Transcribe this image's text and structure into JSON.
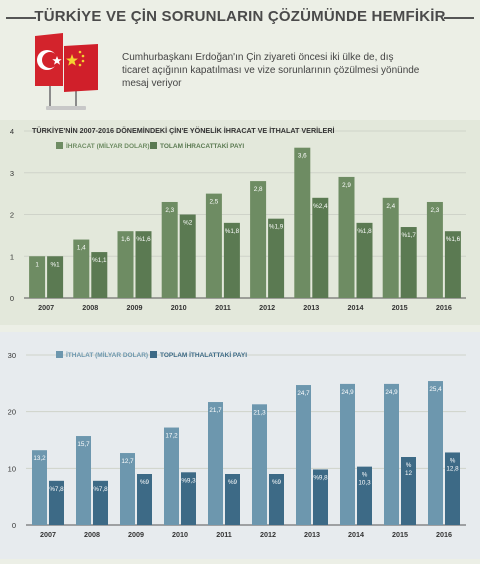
{
  "header": {
    "title": "TÜRKİYE VE ÇİN SORUNLARIN ÇÖZÜMÜNDE HEMFİKİR",
    "intro_lines": [
      "Cumhurbaşkanı Erdoğan'ın Çin ziyareti öncesi iki ülke de, dış",
      "ticaret açığının kapatılması ve vize sorunlarının çözülmesi yönünde",
      "mesaj veriyor"
    ]
  },
  "colors": {
    "export_bar": "#6e8c63",
    "export_share": "#5b7a52",
    "import_bar": "#6d97ae",
    "import_share": "#3d6a86",
    "red": "#d3232c",
    "china_red": "#d01f2a",
    "china_star": "#f5d232"
  },
  "chart_data": [
    {
      "type": "bar",
      "title": "TÜRKİYE'NİN 2007-2016 DÖNEMİNDEKİ ÇİN'E YÖNELİK İHRACAT VE İTHALAT VERİLERİ",
      "categories": [
        "2007",
        "2008",
        "2009",
        "2010",
        "2011",
        "2012",
        "2013",
        "2014",
        "2015",
        "2016"
      ],
      "ylim": [
        0,
        4
      ],
      "yticks": [
        "0",
        "1",
        "2",
        "3",
        "4"
      ],
      "series": [
        {
          "name": "İHRACAT (MİLYAR DOLAR)",
          "values": [
            1,
            1.4,
            1.6,
            2.3,
            2.5,
            2.8,
            3.6,
            2.9,
            2.4,
            2.3
          ],
          "labels": [
            "1",
            "1,4",
            "1,6",
            "2,3",
            "2,5",
            "2,8",
            "3,6",
            "2,9",
            "2,4",
            "2,3"
          ]
        },
        {
          "name": "TOLAM İHRACATTAKİ PAYI",
          "values": [
            1,
            1.1,
            1.6,
            2,
            1.8,
            1.9,
            2.4,
            1.8,
            1.7,
            1.6
          ],
          "labels": [
            "%1",
            "%1,1",
            "%1,6",
            "%2",
            "%1,8",
            "%1,9",
            "%2,4",
            "%1,8",
            "%1,7",
            "%1,6"
          ]
        }
      ],
      "grid": true
    },
    {
      "type": "bar",
      "categories": [
        "2007",
        "2008",
        "2009",
        "2010",
        "2011",
        "2012",
        "2013",
        "2014",
        "2015",
        "2016"
      ],
      "ylim": [
        0,
        30
      ],
      "yticks": [
        "0",
        "10",
        "20",
        "30"
      ],
      "series": [
        {
          "name": "İTHALAT (MİLYAR DOLAR)",
          "values": [
            13.2,
            15.7,
            12.7,
            17.2,
            21.7,
            21.3,
            24.7,
            24.9,
            24.9,
            25.4
          ],
          "labels": [
            "13,2",
            "15,7",
            "12,7",
            "17,2",
            "21,7",
            "21,3",
            "24,7",
            "24,9",
            "24,9",
            "25,4"
          ]
        },
        {
          "name": "TOPLAM İTHALATTAKİ PAYI",
          "values": [
            7.8,
            7.8,
            9,
            9.3,
            9,
            9,
            9.8,
            10.3,
            12,
            12.8
          ],
          "labels": [
            "%7,8",
            "%7,8",
            "%9",
            "%9,3",
            "%9",
            "%9",
            "%9,8",
            "%\n10,3",
            "%\n12",
            "%\n12,8"
          ]
        }
      ],
      "grid": true
    }
  ]
}
